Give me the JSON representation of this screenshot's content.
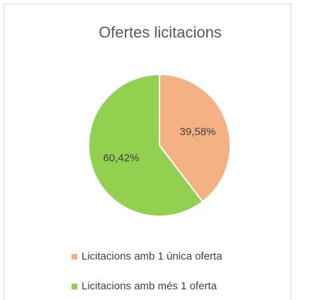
{
  "chart_data": {
    "type": "pie",
    "title": "Ofertes licitacions",
    "categories": [
      "Licitacions amb 1 única oferta",
      "Licitacions amb més 1 oferta"
    ],
    "values": [
      39.58,
      60.42
    ],
    "value_labels": [
      "39,58%",
      "60,42%"
    ],
    "colors": [
      "#f4b183",
      "#92d050"
    ],
    "legend": "bottom"
  }
}
